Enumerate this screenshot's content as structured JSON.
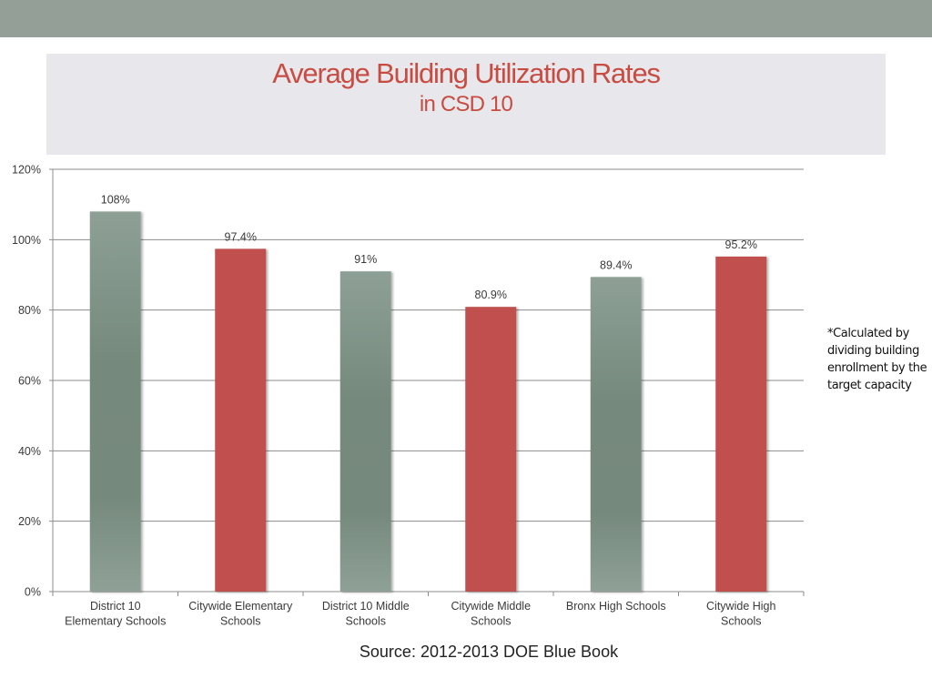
{
  "slide": {
    "title": "Average Building Utilization Rates",
    "subtitle": "in CSD 10",
    "note": "*Calculated by dividing building enrollment by the target capacity",
    "source": "Source: 2012-2013 DOE Blue Book"
  },
  "colors": {
    "band": "#939f97",
    "title_box": "#e8e7ec",
    "title_text": "#c84c41",
    "bar_gray": "#8a9c91",
    "bar_gray_dark": "#75897c",
    "bar_red": "#c0504d",
    "grid": "#8c8c8c"
  },
  "chart_data": {
    "type": "bar",
    "title": "Average Building Utilization Rates in CSD 10",
    "xlabel": "",
    "ylabel": "",
    "ylim": [
      0,
      120
    ],
    "yticks": [
      0,
      20,
      40,
      60,
      80,
      100,
      120
    ],
    "ytick_labels": [
      "0%",
      "20%",
      "40%",
      "60%",
      "80%",
      "100%",
      "120%"
    ],
    "grid": true,
    "legend": "none",
    "categories": [
      [
        "District 10",
        "Elementary Schools"
      ],
      [
        "Citywide Elementary",
        "Schools"
      ],
      [
        "District 10 Middle",
        "Schools"
      ],
      [
        "Citywide Middle",
        "Schools"
      ],
      [
        "Bronx High Schools"
      ],
      [
        "Citywide High",
        "Schools"
      ]
    ],
    "values": [
      108,
      97.4,
      91,
      80.9,
      89.4,
      95.2
    ],
    "data_labels": [
      "108%",
      "97.4%",
      "91%",
      "80.9%",
      "89.4%",
      "95.2%"
    ],
    "bar_colors": [
      "gray",
      "red",
      "gray",
      "red",
      "gray",
      "red"
    ]
  }
}
